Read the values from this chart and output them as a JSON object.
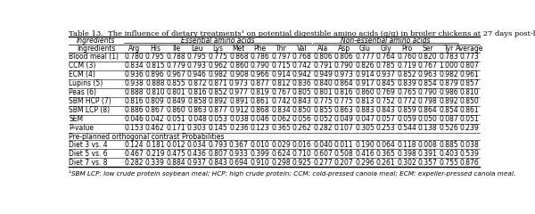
{
  "title": "Table 13.  The influence of dietary treatments¹ on potential digestible amino acids (g/g) in broiler chickens at 27 days post-hatch.",
  "footnote": "¹SBM LCP: low crude protein soybean meal; HCP: high crude protein; CCM: cold-pressed canola meal; ECM: expeller-pressed canola meal.",
  "col_headers": [
    "Ingredients",
    "Arg",
    "His",
    "Ile",
    "Leu",
    "Lys",
    "Met",
    "Phe",
    "Thr",
    "Val",
    "Ala",
    "Asp",
    "Glu",
    "Gly",
    "Pro",
    "Ser",
    "Tyr",
    "Average"
  ],
  "rows": [
    [
      "Blood meal (1)",
      "0.780",
      "0.795",
      "0.788",
      "0.795",
      "0.775",
      "0.868",
      "0.786",
      "0.797",
      "0.768",
      "0.806",
      "0.806",
      "0.777",
      "0.764",
      "0.760",
      "0.820",
      "0.783",
      "0.773"
    ],
    [
      "CCM (3)",
      "0.834",
      "0.815",
      "0.779",
      "0.793",
      "0.962",
      "0.860",
      "0.790",
      "0.715",
      "0.742",
      "0.791",
      "0.790",
      "0.826",
      "0.785",
      "0.719",
      "0.767",
      "1.000",
      "0.807"
    ],
    [
      "ECM (4)",
      "0.936",
      "0.896",
      "0.967",
      "0.946",
      "0.982",
      "0.908",
      "0.966",
      "0.914",
      "0.942",
      "0.949",
      "0.973",
      "0.914",
      "0.937",
      "0.852",
      "0.963",
      "0.982",
      "0.961"
    ],
    [
      "Lupins (5)",
      "0.938",
      "0.888",
      "0.855",
      "0.872",
      "0.871",
      "0.973",
      "0.877",
      "0.812",
      "0.836",
      "0.840",
      "0.864",
      "0.917",
      "0.845",
      "0.839",
      "0.854",
      "0.879",
      "0.857"
    ],
    [
      "Peas (6)",
      "0.888",
      "0.810",
      "0.801",
      "0.816",
      "0.852",
      "0.977",
      "0.819",
      "0.767",
      "0.805",
      "0.801",
      "0.816",
      "0.860",
      "0.769",
      "0.765",
      "0.790",
      "0.986",
      "0.810"
    ],
    [
      "SBM HCP (7)",
      "0.816",
      "0.809",
      "0.849",
      "0.858",
      "0.892",
      "0.891",
      "0.861",
      "0.742",
      "0.843",
      "0.775",
      "0.775",
      "0.813",
      "0.752",
      "0.772",
      "0.798",
      "0.892",
      "0.850"
    ],
    [
      "SBM LCP (8)",
      "0.886",
      "0.867",
      "0.860",
      "0.863",
      "0.877",
      "0.912",
      "0.868",
      "0.834",
      "0.850",
      "0.855",
      "0.863",
      "0.883",
      "0.843",
      "0.859",
      "0.864",
      "0.854",
      "0.861"
    ],
    [
      "SEM",
      "0.046",
      "0.042",
      "0.051",
      "0.048",
      "0.053",
      "0.038",
      "0.046",
      "0.062",
      "0.056",
      "0.052",
      "0.049",
      "0.047",
      "0.057",
      "0.059",
      "0.050",
      "0.087",
      "0.051"
    ],
    [
      "P-value",
      "0.153",
      "0.462",
      "0.171",
      "0.303",
      "0.145",
      "0.236",
      "0.123",
      "0.365",
      "0.262",
      "0.282",
      "0.107",
      "0.305",
      "0.253",
      "0.544",
      "0.138",
      "0.526",
      "0.239"
    ]
  ],
  "section_header": "Pre-planned orthogonal contrast Probabilities",
  "contrast_rows": [
    [
      "Diet 3 vs. 4",
      "0.124",
      "0.181",
      "0.012",
      "0.034",
      "0.793",
      "0.367",
      "0.010",
      "0.029",
      "0.016",
      "0.040",
      "0.011",
      "0.190",
      "0.064",
      "0.118",
      "0.008",
      "0.885",
      "0.038"
    ],
    [
      "Diet 5 vs. 6",
      "0.467",
      "0.219",
      "0.475",
      "0.436",
      "0.807",
      "0.933",
      "0.399",
      "0.624",
      "0.710",
      "0.607",
      "0.508",
      "0.416",
      "0.365",
      "0.398",
      "0.391",
      "0.403",
      "0.539"
    ],
    [
      "Diet 7 vs. 8",
      "0.282",
      "0.339",
      "0.884",
      "0.937",
      "0.843",
      "0.694",
      "0.910",
      "0.298",
      "0.925",
      "0.277",
      "0.207",
      "0.296",
      "0.261",
      "0.302",
      "0.357",
      "0.755",
      "0.876"
    ]
  ],
  "bg_color": "#ffffff",
  "line_color": "#000000",
  "font_size": 5.5,
  "title_font_size": 6.0,
  "footnote_font_size": 5.2
}
